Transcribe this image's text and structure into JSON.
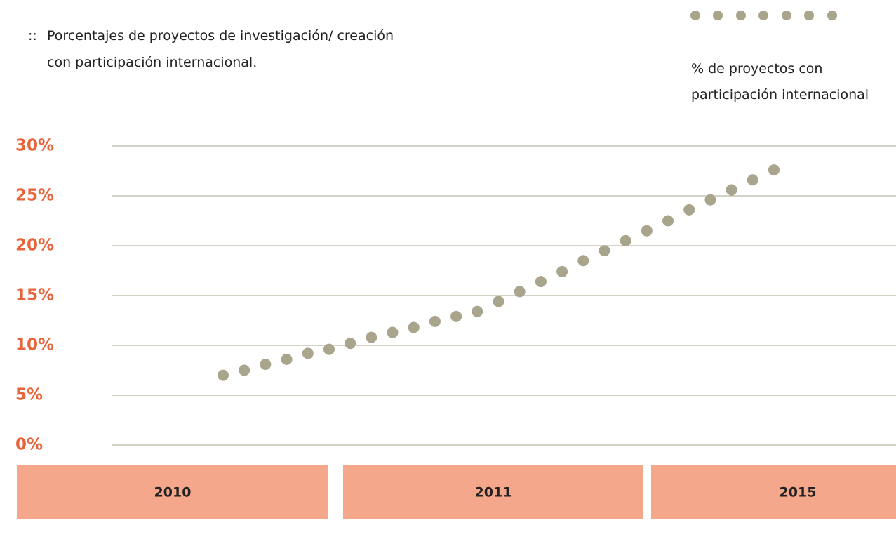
{
  "chart_data": {
    "type": "dots",
    "title_marker": "::",
    "title": "Porcentajes de proyectos de investigación/ creación con participación internacional.",
    "series": [
      {
        "name": "% de proyectos con participación internacional",
        "color": "#a9a48c",
        "values": [
          7.0,
          7.5,
          8.1,
          8.6,
          9.2,
          9.6,
          10.2,
          10.8,
          11.3,
          11.8,
          12.4,
          12.9,
          13.4,
          14.4,
          15.4,
          16.4,
          17.4,
          18.5,
          19.5,
          20.5,
          21.5,
          22.5,
          23.6,
          24.6,
          25.6,
          26.6,
          27.6
        ]
      }
    ],
    "ylim": [
      0,
      30
    ],
    "yticks": [
      {
        "value": 30,
        "label": "30%"
      },
      {
        "value": 25,
        "label": "25%"
      },
      {
        "value": 20,
        "label": "20%"
      },
      {
        "value": 15,
        "label": "15%"
      },
      {
        "value": 10,
        "label": "10%"
      },
      {
        "value": 5,
        "label": "5%"
      },
      {
        "value": 0,
        "label": "0%"
      }
    ],
    "grid": true,
    "periods": [
      "2010",
      "2011",
      "2015"
    ]
  }
}
